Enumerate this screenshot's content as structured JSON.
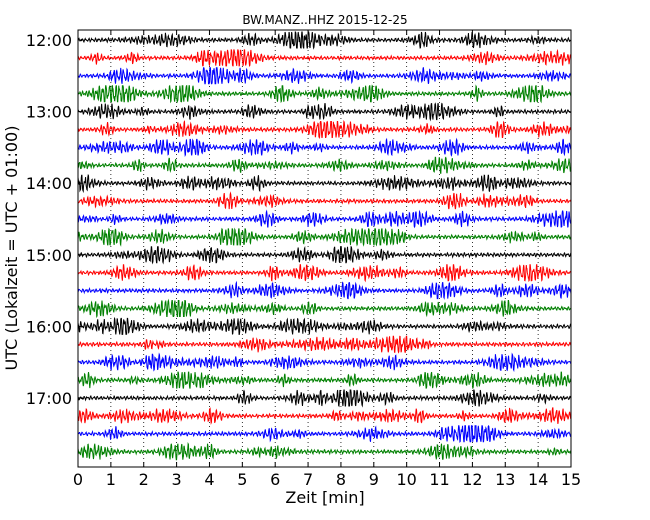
{
  "chart_data": {
    "type": "line",
    "title": "BW.MANZ..HHZ 2015-12-25",
    "xlabel": "Zeit  [min]",
    "ylabel": "UTC (Lokalzeit = UTC + 01:00)",
    "xlim": [
      0,
      15
    ],
    "x_ticks": [
      0,
      1,
      2,
      3,
      4,
      5,
      6,
      7,
      8,
      9,
      10,
      11,
      12,
      13,
      14,
      15
    ],
    "y_tick_labels": [
      "12:00",
      "13:00",
      "14:00",
      "15:00",
      "16:00",
      "17:00"
    ],
    "grid": "vertical dotted",
    "trace_interval_min": 15,
    "start_time": "12:00",
    "color_cycle": [
      "#000000",
      "#ff0000",
      "#0000ff",
      "#008000"
    ],
    "traces": [
      {
        "start": "12:00"
      },
      {
        "start": "12:15"
      },
      {
        "start": "12:30"
      },
      {
        "start": "12:45"
      },
      {
        "start": "13:00"
      },
      {
        "start": "13:15"
      },
      {
        "start": "13:30"
      },
      {
        "start": "13:45"
      },
      {
        "start": "14:00"
      },
      {
        "start": "14:15"
      },
      {
        "start": "14:30"
      },
      {
        "start": "14:45"
      },
      {
        "start": "15:00"
      },
      {
        "start": "15:15"
      },
      {
        "start": "15:30"
      },
      {
        "start": "15:45"
      },
      {
        "start": "16:00"
      },
      {
        "start": "16:15"
      },
      {
        "start": "16:30"
      },
      {
        "start": "16:45"
      },
      {
        "start": "17:00"
      },
      {
        "start": "17:15"
      },
      {
        "start": "17:30"
      },
      {
        "start": "17:45"
      }
    ]
  }
}
